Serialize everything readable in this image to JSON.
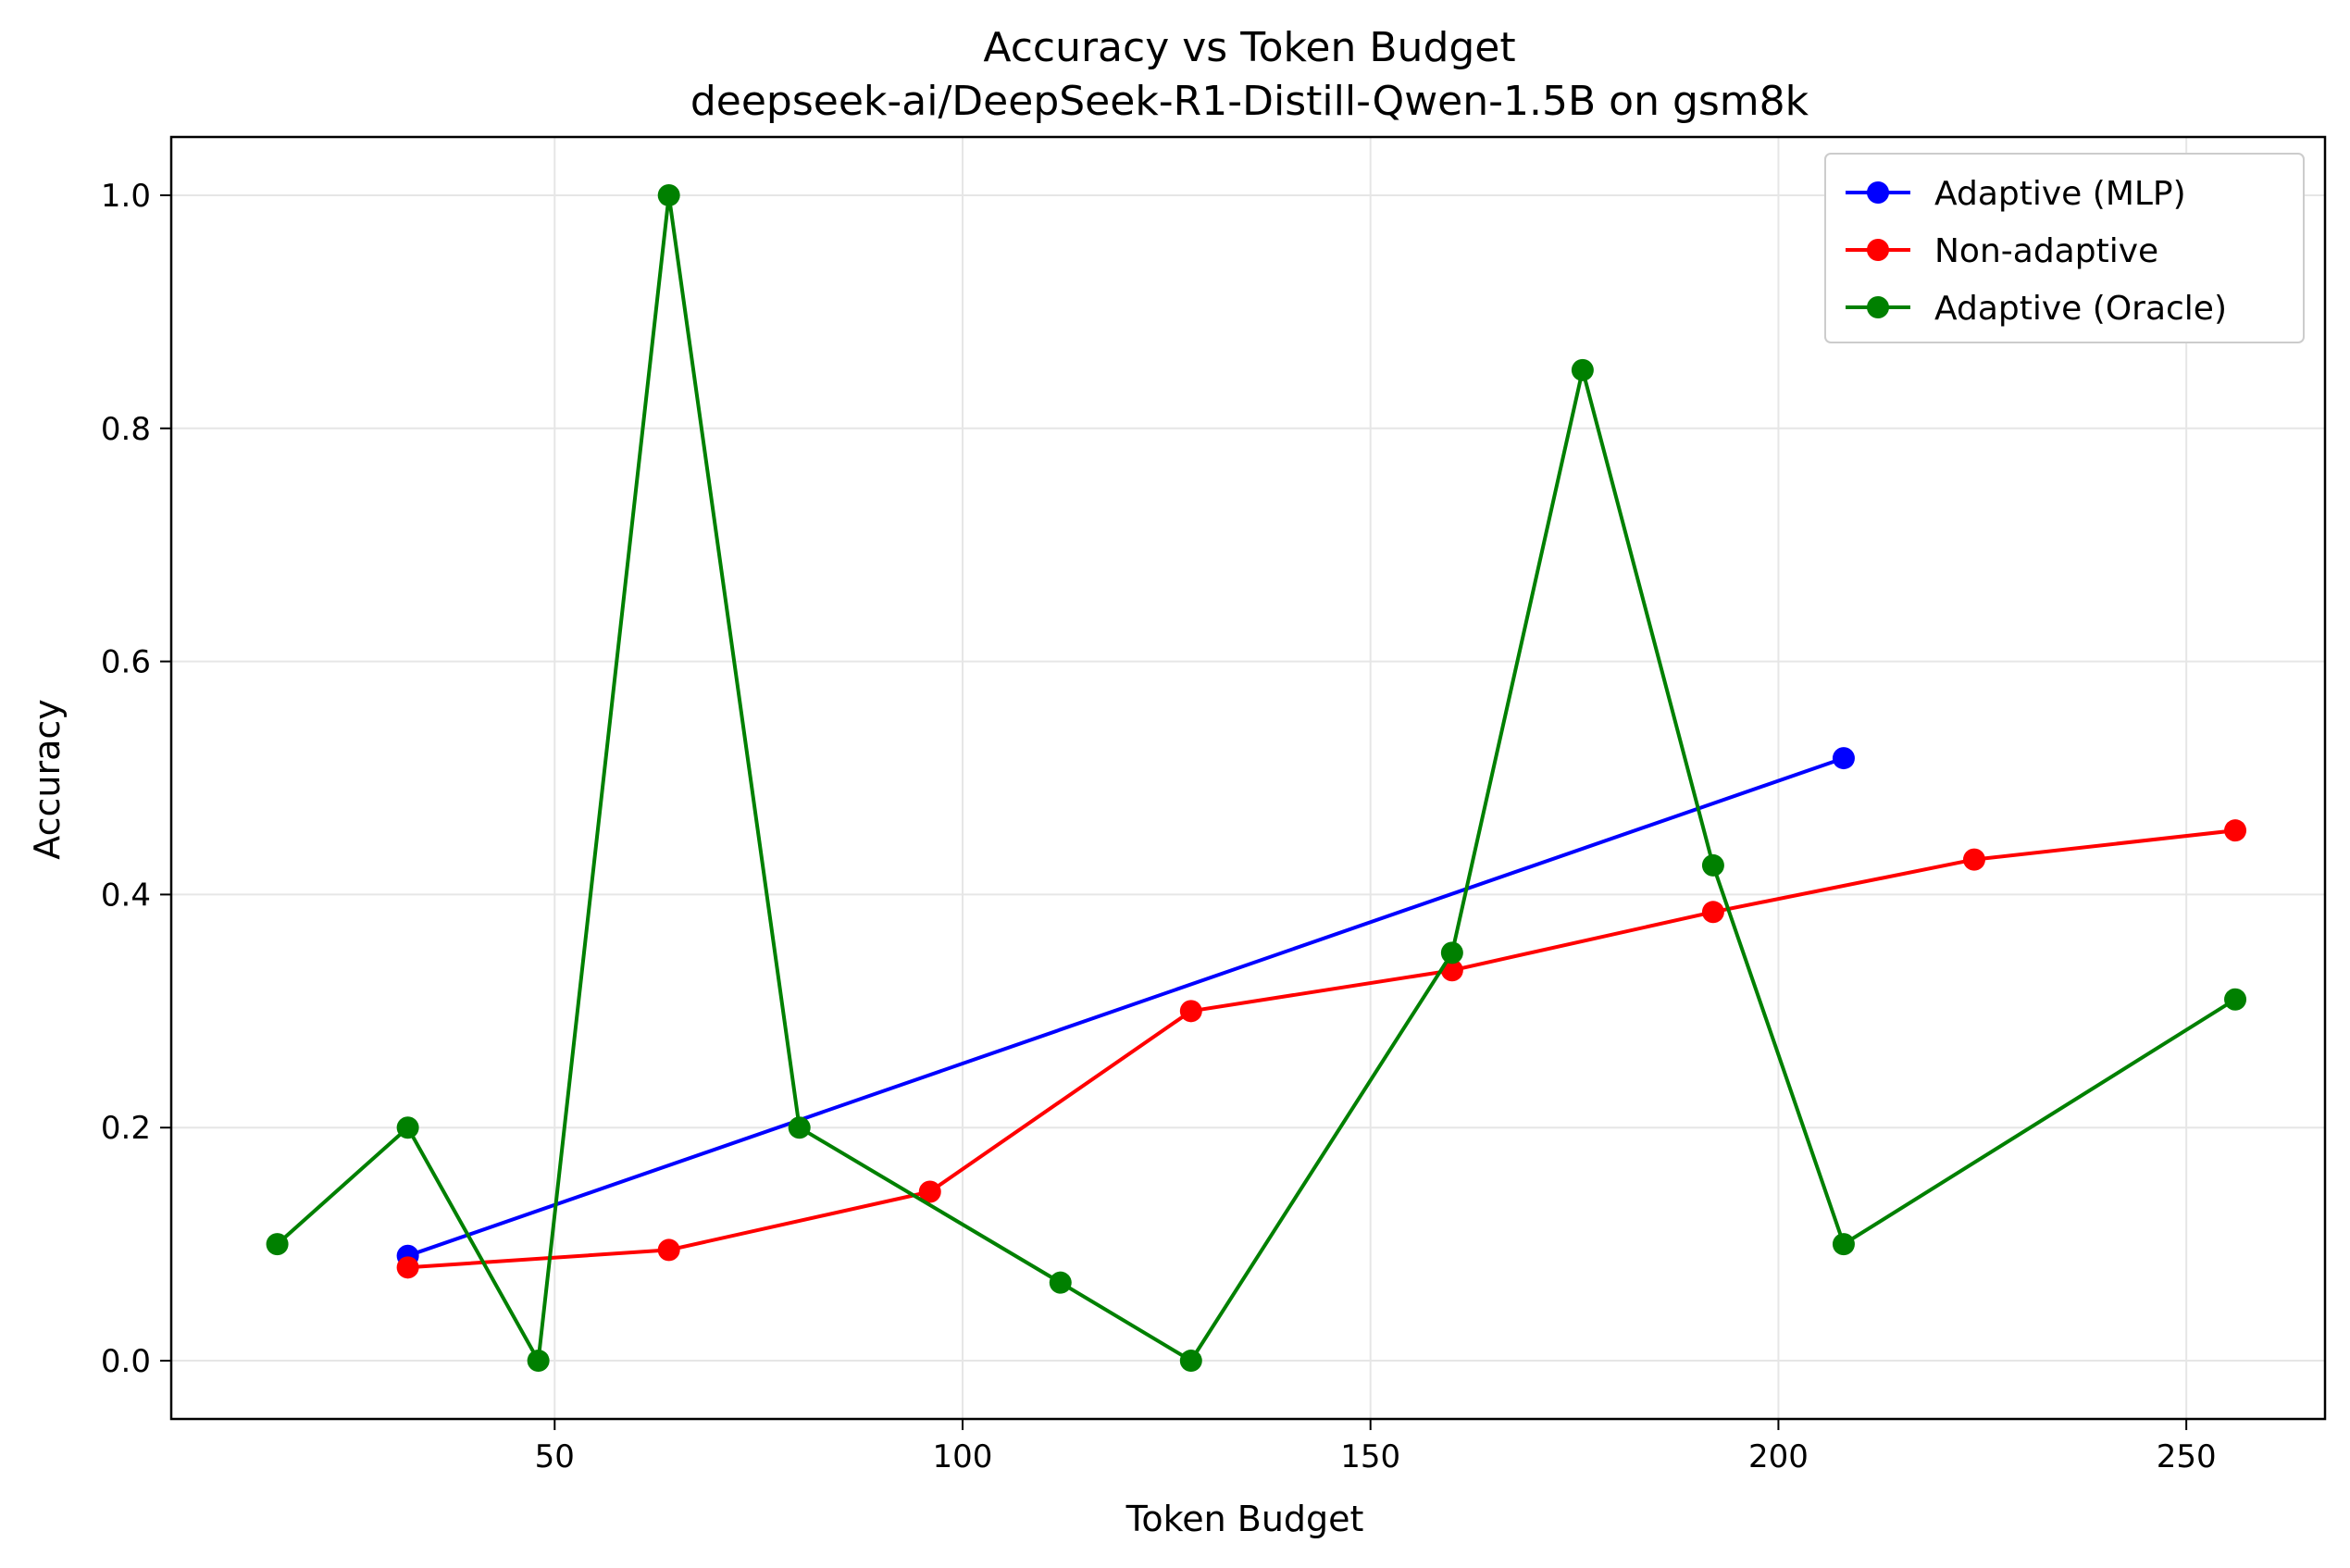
{
  "chart_data": {
    "type": "line",
    "title": "Accuracy vs Token Budget",
    "subtitle": "deepseek-ai/DeepSeek-R1-Distill-Qwen-1.5B on gsm8k",
    "xlabel": "Token Budget",
    "ylabel": "Accuracy",
    "xlim": [
      3,
      267
    ],
    "ylim": [
      -0.05,
      1.05
    ],
    "xticks": [
      50,
      100,
      150,
      200,
      250
    ],
    "yticks": [
      0.0,
      0.2,
      0.4,
      0.6,
      0.8,
      1.0
    ],
    "xtick_labels": [
      "50",
      "100",
      "150",
      "200",
      "250"
    ],
    "ytick_labels": [
      "0.0",
      "0.2",
      "0.4",
      "0.6",
      "0.8",
      "1.0"
    ],
    "grid": true,
    "legend_position": "top-right",
    "series": [
      {
        "name": "Adaptive (MLP)",
        "color": "#0000ff",
        "x": [
          32,
          208
        ],
        "y": [
          0.09,
          0.517
        ]
      },
      {
        "name": "Non-adaptive",
        "color": "#ff0000",
        "x": [
          32,
          64,
          96,
          128,
          160,
          192,
          224,
          256
        ],
        "y": [
          0.08,
          0.095,
          0.145,
          0.3,
          0.335,
          0.385,
          0.43,
          0.455
        ]
      },
      {
        "name": "Adaptive (Oracle)",
        "color": "#008000",
        "x": [
          16,
          32,
          48,
          64,
          80,
          112,
          128,
          160,
          176,
          192,
          208,
          256
        ],
        "y": [
          0.1,
          0.2,
          0.0,
          1.0,
          0.2,
          0.067,
          0.0,
          0.35,
          0.85,
          0.425,
          0.1,
          0.31
        ]
      }
    ]
  }
}
